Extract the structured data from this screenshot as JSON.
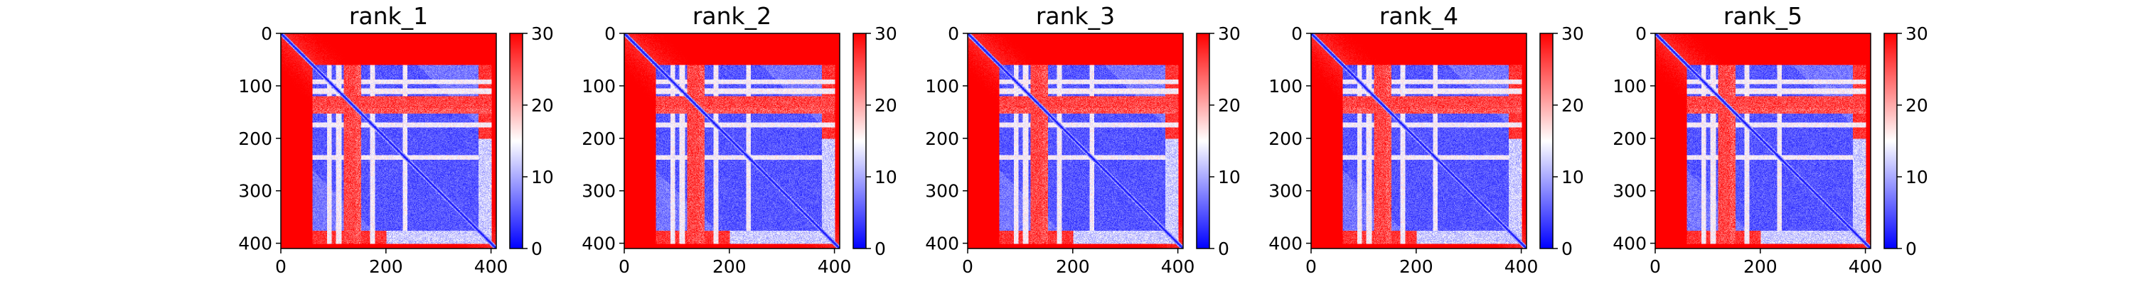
{
  "chart_data": {
    "type": "heatmap",
    "colormap": {
      "name": "bwr",
      "stops": [
        "#0000ff",
        "#ffffff",
        "#ff0000"
      ],
      "vmin": 0,
      "vmax": 30,
      "ticks": [
        0,
        10,
        20,
        30
      ]
    },
    "matrix_size": 410,
    "xlim": [
      0,
      410
    ],
    "ylim": [
      410,
      0
    ],
    "x_ticks": [
      0,
      200,
      400
    ],
    "y_ticks": [
      0,
      100,
      200,
      300,
      400
    ],
    "features": {
      "description_values": "distance-like matrix: low (blue) near diagonal and inside domain block, high (red) elsewhere",
      "domain_block": [
        60,
        400
      ],
      "gap_columns": [
        [
          120,
          142
        ]
      ],
      "white_bands": [
        [
          88,
          96
        ],
        [
          105,
          115
        ],
        [
          170,
          178
        ],
        [
          232,
          240
        ]
      ],
      "red_bands": [
        [
          125,
          138
        ],
        [
          140,
          152
        ]
      ],
      "block_bottom": 375
    },
    "panels": [
      {
        "title": "rank_1"
      },
      {
        "title": "rank_2"
      },
      {
        "title": "rank_3"
      },
      {
        "title": "rank_4"
      },
      {
        "title": "rank_5"
      }
    ]
  }
}
